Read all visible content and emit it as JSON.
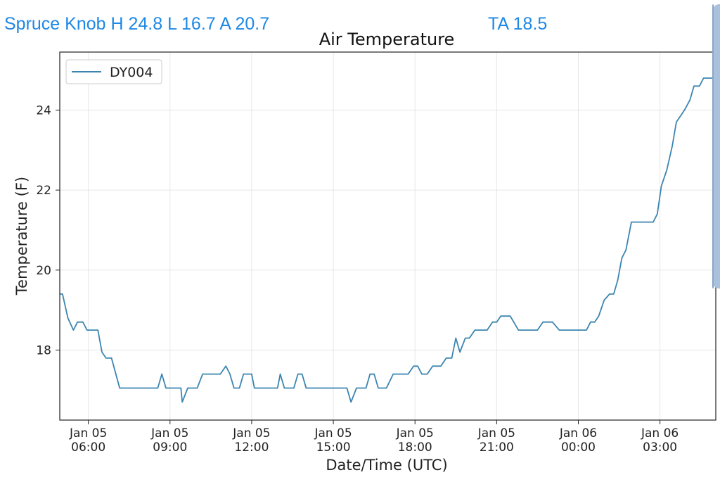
{
  "header": {
    "station_summary": "Spruce Knob H 24.8 L 16.7 A 20.7",
    "ta_readout": "TA 18.5"
  },
  "colors": {
    "header_text": "#1e88e5",
    "series_line": "#3b85b0",
    "scroll_handle": "#aac1de"
  },
  "chart_data": {
    "type": "line",
    "title": "Air Temperature",
    "xlabel": "Date/Time (UTC)",
    "ylabel": "Temperature (F)",
    "x_unit": "hours from 2023-01-05 00:00 UTC",
    "xlim": [
      4.95,
      29.05
    ],
    "ylim": [
      16.25,
      25.45
    ],
    "grid": true,
    "legend_placement": "top-left",
    "x_ticks": [
      {
        "value": 6,
        "line1": "Jan 05",
        "line2": "06:00"
      },
      {
        "value": 9,
        "line1": "Jan 05",
        "line2": "09:00"
      },
      {
        "value": 12,
        "line1": "Jan 05",
        "line2": "12:00"
      },
      {
        "value": 15,
        "line1": "Jan 05",
        "line2": "15:00"
      },
      {
        "value": 18,
        "line1": "Jan 05",
        "line2": "18:00"
      },
      {
        "value": 21,
        "line1": "Jan 05",
        "line2": "21:00"
      },
      {
        "value": 24,
        "line1": "Jan 06",
        "line2": "00:00"
      },
      {
        "value": 27,
        "line1": "Jan 06",
        "line2": "03:00"
      }
    ],
    "y_ticks": [
      18,
      20,
      22,
      24
    ],
    "series": [
      {
        "name": "DY004",
        "color": "#3b85b0",
        "points": [
          [
            4.95,
            19.4
          ],
          [
            5.05,
            19.4
          ],
          [
            5.25,
            18.8
          ],
          [
            5.45,
            18.5
          ],
          [
            5.6,
            18.7
          ],
          [
            5.8,
            18.7
          ],
          [
            5.95,
            18.5
          ],
          [
            6.35,
            18.5
          ],
          [
            6.5,
            17.95
          ],
          [
            6.65,
            17.8
          ],
          [
            6.85,
            17.8
          ],
          [
            7.15,
            17.05
          ],
          [
            8.05,
            17.05
          ],
          [
            8.15,
            17.05
          ],
          [
            8.3,
            17.05
          ],
          [
            8.55,
            17.05
          ],
          [
            8.7,
            17.4
          ],
          [
            8.85,
            17.05
          ],
          [
            9.15,
            17.05
          ],
          [
            9.3,
            17.05
          ],
          [
            9.4,
            17.05
          ],
          [
            9.45,
            16.7
          ],
          [
            9.65,
            17.05
          ],
          [
            10.0,
            17.05
          ],
          [
            10.2,
            17.4
          ],
          [
            10.4,
            17.4
          ],
          [
            10.85,
            17.4
          ],
          [
            11.05,
            17.6
          ],
          [
            11.2,
            17.4
          ],
          [
            11.35,
            17.05
          ],
          [
            11.55,
            17.05
          ],
          [
            11.7,
            17.4
          ],
          [
            12.0,
            17.4
          ],
          [
            12.1,
            17.05
          ],
          [
            12.8,
            17.05
          ],
          [
            12.95,
            17.05
          ],
          [
            13.05,
            17.4
          ],
          [
            13.2,
            17.05
          ],
          [
            13.55,
            17.05
          ],
          [
            13.7,
            17.4
          ],
          [
            13.85,
            17.4
          ],
          [
            14.0,
            17.05
          ],
          [
            14.9,
            17.05
          ],
          [
            15.15,
            17.05
          ],
          [
            15.5,
            17.05
          ],
          [
            15.65,
            16.7
          ],
          [
            15.85,
            17.05
          ],
          [
            16.2,
            17.05
          ],
          [
            16.35,
            17.4
          ],
          [
            16.5,
            17.4
          ],
          [
            16.65,
            17.05
          ],
          [
            16.95,
            17.05
          ],
          [
            17.2,
            17.4
          ],
          [
            17.75,
            17.4
          ],
          [
            17.95,
            17.6
          ],
          [
            18.1,
            17.6
          ],
          [
            18.25,
            17.4
          ],
          [
            18.45,
            17.4
          ],
          [
            18.65,
            17.6
          ],
          [
            18.95,
            17.6
          ],
          [
            19.15,
            17.8
          ],
          [
            19.35,
            17.8
          ],
          [
            19.5,
            18.3
          ],
          [
            19.65,
            17.95
          ],
          [
            19.85,
            18.3
          ],
          [
            20.0,
            18.3
          ],
          [
            20.2,
            18.5
          ],
          [
            20.65,
            18.5
          ],
          [
            20.85,
            18.7
          ],
          [
            21.0,
            18.7
          ],
          [
            21.15,
            18.85
          ],
          [
            21.5,
            18.85
          ],
          [
            21.8,
            18.5
          ],
          [
            22.0,
            18.5
          ],
          [
            22.5,
            18.5
          ],
          [
            22.7,
            18.7
          ],
          [
            23.05,
            18.7
          ],
          [
            23.3,
            18.5
          ],
          [
            23.8,
            18.5
          ],
          [
            24.15,
            18.5
          ],
          [
            24.3,
            18.5
          ],
          [
            24.45,
            18.7
          ],
          [
            24.6,
            18.7
          ],
          [
            24.75,
            18.85
          ],
          [
            24.95,
            19.25
          ],
          [
            25.15,
            19.4
          ],
          [
            25.3,
            19.4
          ],
          [
            25.45,
            19.75
          ],
          [
            25.6,
            20.3
          ],
          [
            25.75,
            20.5
          ],
          [
            25.95,
            21.2
          ],
          [
            26.0,
            21.2
          ],
          [
            26.5,
            21.2
          ],
          [
            26.75,
            21.2
          ],
          [
            26.9,
            21.4
          ],
          [
            27.05,
            22.1
          ],
          [
            27.25,
            22.5
          ],
          [
            27.45,
            23.1
          ],
          [
            27.6,
            23.7
          ],
          [
            27.75,
            23.85
          ],
          [
            27.9,
            24.0
          ],
          [
            28.1,
            24.25
          ],
          [
            28.25,
            24.6
          ],
          [
            28.45,
            24.6
          ],
          [
            28.6,
            24.8
          ],
          [
            28.85,
            24.8
          ],
          [
            28.95,
            24.8
          ],
          [
            29.05,
            25.0
          ]
        ]
      }
    ]
  }
}
